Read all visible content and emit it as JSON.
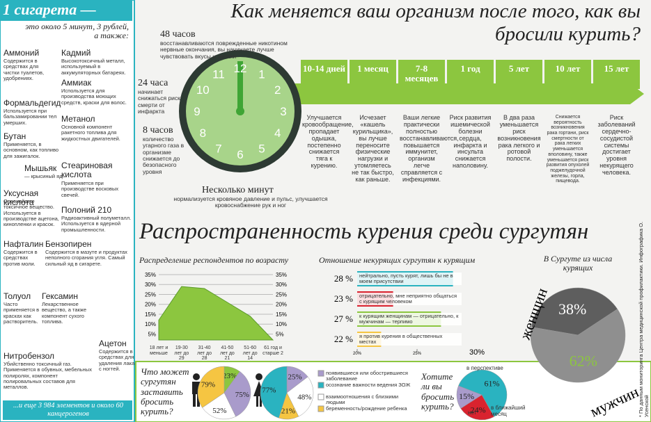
{
  "sidebar": {
    "title": "1 сигарета —",
    "subtitle": "это около 5 минут, 3 рублей, а также:",
    "items": [
      {
        "name": "Аммоний",
        "desc": "Содержится в средствах для чистки туалетов, удобрениях."
      },
      {
        "name": "Кадмий",
        "desc": "Высокотоксичный металл, используемый в аккумуляторных батареях."
      },
      {
        "name": "Аммиак",
        "desc": "Используется для производства моющих средств, краски для волос."
      },
      {
        "name": "Формальдегид",
        "desc": "Используется при бальзамировании тел умерших."
      },
      {
        "name": "Метанол",
        "desc": "Основной компонент ракетного топлива для жидкостных двигателей."
      },
      {
        "name": "Бутан",
        "desc": "Применяется, в основном, как топливо для зажигалок."
      },
      {
        "name": "Мышьяк",
        "desc": "— крысиный яд."
      },
      {
        "name": "Стеариновая кислота",
        "desc": "Применяется при производстве восковых свечей."
      },
      {
        "name": "Уксусная кислота",
        "desc": "Опаснейшее токсичное вещество. Используется в производстве ацетона, кинопленки и красок."
      },
      {
        "name": "Полоний 210",
        "desc": "Радиоактивный полуметалл. Используется в ядерной промышленности."
      },
      {
        "name": "Нафталин",
        "desc": "Содержится в средствах против моли."
      },
      {
        "name": "Бензопирен",
        "desc": "Содержится в мазуте и продуктах неполного сгорания угля. Самый сильный яд в сигарете."
      },
      {
        "name": "Толуол",
        "desc": "Часто применяется в красках как растворитель."
      },
      {
        "name": "Гексамин",
        "desc": "Лекарственное вещество, а также компонент сухого топлива."
      },
      {
        "name": "Ацетон",
        "desc": "Содержится в средствах для удаления лака с ногтей."
      },
      {
        "name": "Нитробензол",
        "desc": "Убийственно токсичный газ. Применяется в обувных, мебельных полиролях, компонент полировальных составов для металлов."
      }
    ],
    "footer": "...и еще 3 984 элементов и около 60 канцерогенов"
  },
  "header": {
    "title": "Как меняется ваш организм после того, как вы бросили курить?"
  },
  "clock": {
    "numbers": [
      "12",
      "1",
      "2",
      "3",
      "4",
      "5",
      "6",
      "7",
      "8",
      "9",
      "10",
      "11"
    ],
    "notes": [
      {
        "time": "48 часов",
        "text": "восстанавливаются поврежденные никотином нервные окончания, вы начинаете лучше чувствовать вкусы и запахи"
      },
      {
        "time": "24 часа",
        "text": "начинает снижаться риск смерти от инфаркта"
      },
      {
        "time": "8 часов",
        "text": "количество угарного газа в организме снижается до безопасного уровня"
      },
      {
        "time": "Несколько минут",
        "text": "нормализуется кровяное давление и пульс, улучшается кровоснабжение рук и ног"
      }
    ]
  },
  "timeline": [
    {
      "period": "10-14 дней",
      "text": "Улучшается кровообращение, пропадает одышка, постепенно снижается тяга к курению."
    },
    {
      "period": "1 месяц",
      "text": "Исчезает «кашель курильщика», вы лучше переносите физические нагрузки и утомляетесь не так быстро, как раньше."
    },
    {
      "period": "7-8 месяцев",
      "text": "Ваши легкие практически полностью восстанавливаются, повышается иммунитет, организм легче справляется с инфекциями."
    },
    {
      "period": "1 год",
      "text": "Риск развития ишемической болезни сердца, инфаркта и инсульта снижается наполовину."
    },
    {
      "period": "5 лет",
      "text": "В два раза уменьшается риск возникновения рака легкого и ротовой полости."
    },
    {
      "period": "10 лет",
      "text": "Снижается вероятность возникновения рака гортани, риск смертности от рака легких уменьшается вполовину, также уменьшается риск развития опухолей поджелудочной железы, горла, пищевода."
    },
    {
      "period": "15 лет",
      "text": "Риск заболеваний сердечно-сосудистой системы достигает уровня некурящего человека."
    }
  ],
  "survey": {
    "title": "Распространенность курения среди сургутян",
    "age_chart": {
      "type": "area",
      "title": "Распределение респондентов по возрасту",
      "color": "#8cc63f",
      "categories": [
        "18 лет и меньше",
        "19-30 лет до 29",
        "31-40 лет до 28",
        "41-50 лет до 21",
        "51-60 лет до 14",
        "61 год и старше 2"
      ],
      "values": [
        12,
        29,
        28,
        21,
        14,
        2
      ],
      "ylim": [
        2,
        35
      ],
      "yticks": [
        {
          "value": 5,
          "label": "5%"
        },
        {
          "value": 10,
          "label": "10%"
        },
        {
          "value": 15,
          "label": "15%"
        },
        {
          "value": 20,
          "label": "20%"
        },
        {
          "value": 25,
          "label": "25%"
        },
        {
          "value": 30,
          "label": "30%"
        },
        {
          "value": 35,
          "label": "35%"
        }
      ]
    },
    "attitude_chart": {
      "type": "bar",
      "title": "Отношение некурящих сургутян к курящим",
      "categories": [
        "нейтрально, пусть курят, лишь бы не в моем присутствии",
        "отрицательно, мне неприятно общаться с курящим человеком",
        "к курящим женщинам — отрицательно, к мужчинам — терпимо",
        "я против курения в общественных местах"
      ],
      "values": [
        28,
        23,
        27,
        22
      ],
      "value_labels": [
        "28 %",
        "23 %",
        "27 %",
        "22 %"
      ],
      "colors": [
        "#2ab3c0",
        "#d9232f",
        "#8cc63f",
        "#f5c542"
      ],
      "xlim": [
        20,
        30
      ],
      "xticks": [
        {
          "value": 20,
          "label": "20%"
        },
        {
          "value": 25,
          "label": "25%"
        },
        {
          "value": 30,
          "label": "30%"
        }
      ]
    },
    "gender_chart": {
      "type": "pie",
      "title": "В Сургуте из числа курящих",
      "categories": [
        "женщин",
        "мужчин"
      ],
      "values": [
        38,
        62
      ],
      "value_labels": [
        "38%",
        "62%"
      ],
      "colors": [
        "#5e5e5e",
        "#8f8f8f"
      ]
    },
    "reasons": {
      "type": "pie",
      "title": "Что может сургутян заставить бросить курить?",
      "legend": [
        {
          "name": "появившиеся или обострившиеся заболевание",
          "color": "#a99bcb"
        },
        {
          "name": "осознание важности ведения ЗОЖ",
          "color": "#2ab3c0"
        },
        {
          "name": "взаимоотношения с близкими людьми",
          "color": "#ffffff"
        },
        {
          "name": "беременность/рождение ребенка",
          "color": "#f5c542"
        }
      ],
      "charts": [
        {
          "values": [
            23,
            75,
            52,
            79
          ],
          "value_labels": [
            "23%",
            "75%",
            "52%",
            "79%"
          ],
          "colors": [
            "#8cc63f",
            "#a99bcb",
            "#ffffff",
            "#f5c542"
          ]
        },
        {
          "values": [
            25,
            48,
            21,
            77
          ],
          "value_labels": [
            "25%",
            "48%",
            "21%",
            "77%"
          ],
          "colors": [
            "#a99bcb",
            "#ffffff",
            "#f5c542",
            "#2ab3c0"
          ]
        }
      ]
    },
    "quit_chart": {
      "type": "pie",
      "title": "Хотите ли вы бросить курить?",
      "categories": [
        "в перспективе",
        "нет",
        "в ближайший месяц"
      ],
      "values": [
        61,
        24,
        15
      ],
      "value_labels": [
        "61%",
        "24%",
        "15%"
      ],
      "colors": [
        "#2ab3c0",
        "#d9232f",
        "#a99bcb"
      ]
    }
  },
  "credit": "* По данным мониторинга Центра медицинской профилактики. Инфографика О. Усенской"
}
